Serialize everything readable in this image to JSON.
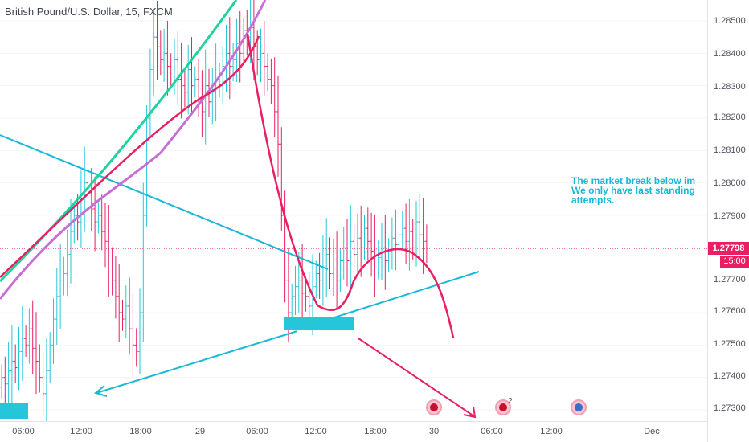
{
  "header": {
    "title": "British Pound/U.S. Dollar, 15, FXCM"
  },
  "price_axis": {
    "labels": [
      "1.28500",
      "1.28400",
      "1.28300",
      "1.28200",
      "1.28100",
      "1.28000",
      "1.27900",
      "1.27700",
      "1.27600",
      "1.27500",
      "1.27400",
      "1.27300"
    ],
    "last_price": "1.27798",
    "countdown": "15:00"
  },
  "time_axis": {
    "labels": [
      "06:00",
      "12:00",
      "18:00",
      "29",
      "06:00",
      "12:00",
      "18:00",
      "30",
      "06:00",
      "12:00",
      "Dec"
    ]
  },
  "annotation": {
    "lines": [
      "The market break below im",
      "We only have last standing",
      "attempts."
    ]
  },
  "events": [
    {
      "icon": "uk-flag-icon",
      "count": ""
    },
    {
      "icon": "uk-flag-icon",
      "count": "2"
    },
    {
      "icon": "us-flag-icon",
      "count": ""
    }
  ],
  "colors": {
    "up_bar": "#26c6da",
    "down_bar": "#e91e63",
    "trend_line": "#1ab8d8",
    "curve_green": "#1ed3a0",
    "curve_purple": "#c86dd7",
    "curve_pink": "#e91e63",
    "last_price": "#e91e63"
  },
  "chart_data": {
    "type": "ohlc",
    "symbol": "British Pound/U.S. Dollar",
    "timeframe": "15",
    "source": "FXCM",
    "ylim": [
      1.2725,
      1.2858
    ],
    "last_price": 1.27798,
    "x_ticks": [
      "06:00",
      "12:00",
      "18:00",
      "29",
      "06:00",
      "12:00",
      "18:00",
      "30",
      "06:00",
      "12:00",
      "Dec"
    ],
    "closes": [
      1.274,
      1.2738,
      1.2742,
      1.2745,
      1.2743,
      1.2748,
      1.2752,
      1.275,
      1.2755,
      1.2749,
      1.2745,
      1.274,
      1.2735,
      1.2742,
      1.275,
      1.2758,
      1.2765,
      1.277,
      1.2772,
      1.2778,
      1.2785,
      1.279,
      1.2788,
      1.2795,
      1.28,
      1.2797,
      1.2792,
      1.2788,
      1.279,
      1.2785,
      1.2782,
      1.2775,
      1.277,
      1.2765,
      1.276,
      1.2758,
      1.2762,
      1.2755,
      1.275,
      1.2748,
      1.276,
      1.279,
      1.282,
      1.2835,
      1.2845,
      1.2842,
      1.2838,
      1.284,
      1.2836,
      1.2833,
      1.2838,
      1.2832,
      1.283,
      1.2828,
      1.2835,
      1.283,
      1.2832,
      1.2826,
      1.2822,
      1.283,
      1.2825,
      1.2828,
      1.2833,
      1.283,
      1.2836,
      1.284,
      1.2836,
      1.2838,
      1.2843,
      1.284,
      1.2847,
      1.2845,
      1.2848,
      1.2842,
      1.2838,
      1.284,
      1.2836,
      1.2832,
      1.283,
      1.2822,
      1.2812,
      1.279,
      1.277,
      1.276,
      1.2765,
      1.2768,
      1.277,
      1.2766,
      1.2765,
      1.2762,
      1.2768,
      1.2772,
      1.277,
      1.2775,
      1.2778,
      1.2772,
      1.2775,
      1.277,
      1.2776,
      1.278,
      1.2776,
      1.2782,
      1.2778,
      1.2783,
      1.278,
      1.2786,
      1.2782,
      1.2779,
      1.2775,
      1.2777,
      1.278,
      1.2776,
      1.2779,
      1.2783,
      1.2781,
      1.2784,
      1.2786,
      1.2782,
      1.2785,
      1.278,
      1.2788,
      1.2784,
      1.2782,
      1.278
    ],
    "drawings": [
      {
        "type": "trend_line",
        "name": "descending-trendline"
      },
      {
        "type": "trend_line",
        "name": "ascending-trendline"
      },
      {
        "type": "arrow",
        "name": "down-right-arrow"
      },
      {
        "type": "arrow",
        "name": "down-left-arrow"
      },
      {
        "type": "curve",
        "name": "green-curve"
      },
      {
        "type": "curve",
        "name": "purple-curve"
      },
      {
        "type": "curve",
        "name": "pink-curve"
      },
      {
        "type": "rectangle",
        "name": "support-box"
      }
    ]
  }
}
